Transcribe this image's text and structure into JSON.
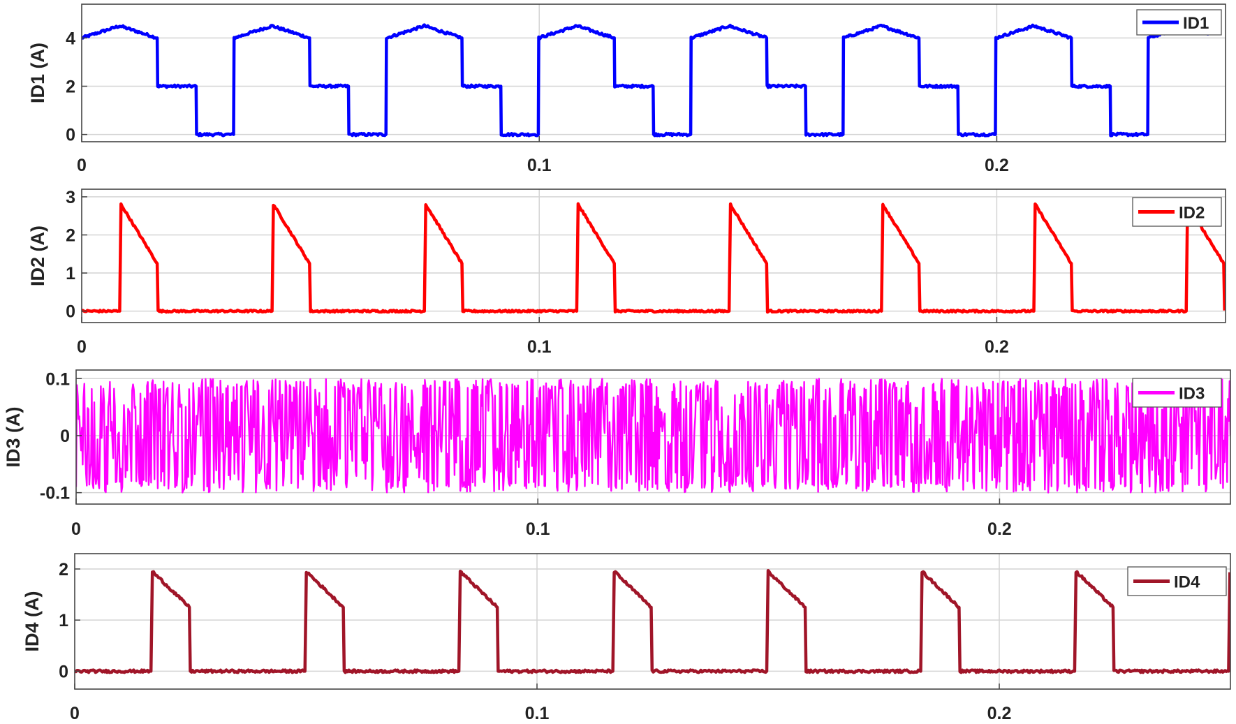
{
  "chart_data": [
    {
      "type": "line",
      "ylabel": "ID1 (A)",
      "xlim": [
        0,
        0.25
      ],
      "ylim": [
        -0.3,
        5.4
      ],
      "yticks": [
        0,
        2,
        4
      ],
      "ytick_labels": [
        "0",
        "2",
        "4"
      ],
      "xticks": [
        0,
        0.1,
        0.2
      ],
      "xtick_labels": [
        "0",
        "0.1",
        "0.2"
      ],
      "grid": true,
      "legend_position": "top-right",
      "series": [
        {
          "name": "ID1",
          "color": "#0000ff",
          "period": 0.0333,
          "phase": 0,
          "end_x": 0.2465,
          "noise": 0.05,
          "segments": [
            [
              0,
              4.0
            ],
            [
              0.0083,
              4.5
            ],
            [
              0.0165,
              4.0
            ],
            [
              0.0166,
              2.0
            ],
            [
              0.025,
              2.0
            ],
            [
              0.0251,
              0.0
            ],
            [
              0.0332,
              0.0
            ],
            [
              0.0333,
              4.0
            ]
          ]
        }
      ]
    },
    {
      "type": "line",
      "ylabel": "ID2 (A)",
      "xlim": [
        0,
        0.25
      ],
      "ylim": [
        -0.3,
        3.2
      ],
      "yticks": [
        0,
        1,
        2,
        3
      ],
      "ytick_labels": [
        "0",
        "1",
        "2",
        "3"
      ],
      "xticks": [
        0,
        0.1,
        0.2
      ],
      "xtick_labels": [
        "0",
        "0.1",
        "0.2"
      ],
      "grid": true,
      "legend_position": "top-right",
      "series": [
        {
          "name": "ID2",
          "color": "#ff0000",
          "period": 0.0333,
          "phase": 0,
          "end_x": 0.25,
          "noise": 0.025,
          "segments": [
            [
              0,
              0.0
            ],
            [
              0.0083,
              0.0
            ],
            [
              0.0086,
              2.8
            ],
            [
              0.0165,
              1.25
            ],
            [
              0.0167,
              0.0
            ],
            [
              0.0333,
              0.0
            ]
          ]
        }
      ]
    },
    {
      "type": "line",
      "ylabel": "ID3 (A)",
      "xlim": [
        0,
        0.25
      ],
      "ylim": [
        -0.12,
        0.115
      ],
      "yticks": [
        -0.1,
        0,
        0.1
      ],
      "ytick_labels": [
        "-0.1",
        "0",
        "0.1"
      ],
      "xticks": [
        0,
        0.1,
        0.2
      ],
      "xtick_labels": [
        "0",
        "0.1",
        "0.2"
      ],
      "grid": true,
      "legend_position": "top-right",
      "series": [
        {
          "name": "ID3",
          "color": "#ff00ff",
          "style": "noise",
          "amplitude": 0.1,
          "samples": 1400,
          "end_x": 0.25
        }
      ]
    },
    {
      "type": "line",
      "ylabel": "ID4 (A)",
      "xlim": [
        0,
        0.25
      ],
      "ylim": [
        -0.35,
        2.3
      ],
      "yticks": [
        0,
        1,
        2
      ],
      "ytick_labels": [
        "0",
        "1",
        "2"
      ],
      "xticks": [
        0,
        0.1,
        0.2
      ],
      "xtick_labels": [
        "0",
        "0.1",
        "0.2"
      ],
      "grid": true,
      "legend_position": "top-right",
      "series": [
        {
          "name": "ID4",
          "color": "#a01528",
          "period": 0.0333,
          "phase": 0,
          "end_x": 0.25,
          "noise": 0.025,
          "segments": [
            [
              0,
              0.0
            ],
            [
              0.0165,
              0.0
            ],
            [
              0.0168,
              1.95
            ],
            [
              0.0248,
              1.25
            ],
            [
              0.025,
              0.0
            ],
            [
              0.0333,
              0.0
            ]
          ]
        }
      ]
    }
  ]
}
